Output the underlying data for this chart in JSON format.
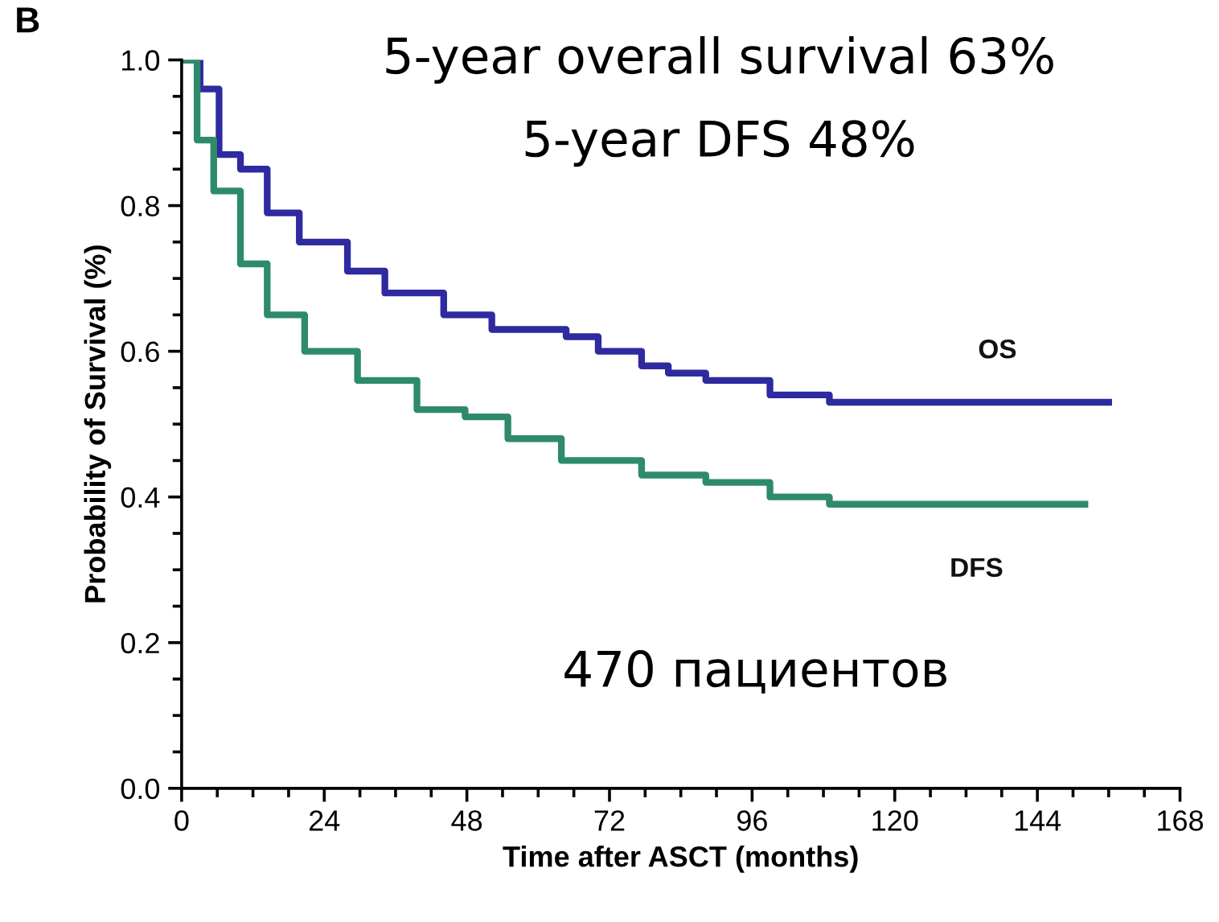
{
  "chart_data": {
    "type": "step",
    "xlabel": "Time after ASCT (months)",
    "ylabel": "Probability of Survival (%)",
    "xlim": [
      0,
      168
    ],
    "xticks": [
      0,
      24,
      48,
      72,
      96,
      120,
      144,
      168
    ],
    "ylim": [
      0,
      1.0
    ],
    "yticks": [
      {
        "value": 0,
        "label": "0.0"
      },
      0.2,
      0.4,
      0.6,
      0.8,
      {
        "value": 1.0,
        "label": "1.0"
      }
    ],
    "grid": false,
    "legend": false,
    "marker": "none",
    "line_style": "solid",
    "series": [
      {
        "name": "OS",
        "color": "#2e2aa0",
        "x": [
          0,
          3.1,
          6.3,
          9.9,
          14.4,
          19.8,
          27.9,
          34.2,
          44.1,
          52.2,
          64.7,
          70.1,
          77.4,
          81.9,
          88.2,
          99,
          109,
          156
        ],
        "values": [
          1.0,
          0.96,
          0.87,
          0.85,
          0.79,
          0.75,
          0.71,
          0.68,
          0.65,
          0.63,
          0.62,
          0.6,
          0.58,
          0.57,
          0.56,
          0.54,
          0.53,
          0.53
        ]
      },
      {
        "name": "DFS",
        "color": "#2e8b6a",
        "x": [
          0,
          2.6,
          5.4,
          9.9,
          14.4,
          20.7,
          29.6,
          39.6,
          47.7,
          54.9,
          63.9,
          77.4,
          88.2,
          99,
          109,
          152
        ],
        "values": [
          1.0,
          0.89,
          0.82,
          0.72,
          0.65,
          0.6,
          0.56,
          0.52,
          0.51,
          0.48,
          0.45,
          0.43,
          0.42,
          0.4,
          0.39,
          0.39
        ]
      }
    ],
    "annotations": [
      "B",
      "5-year overall survival 63%",
      "5-year DFS 48%",
      "470 пациентов"
    ]
  }
}
